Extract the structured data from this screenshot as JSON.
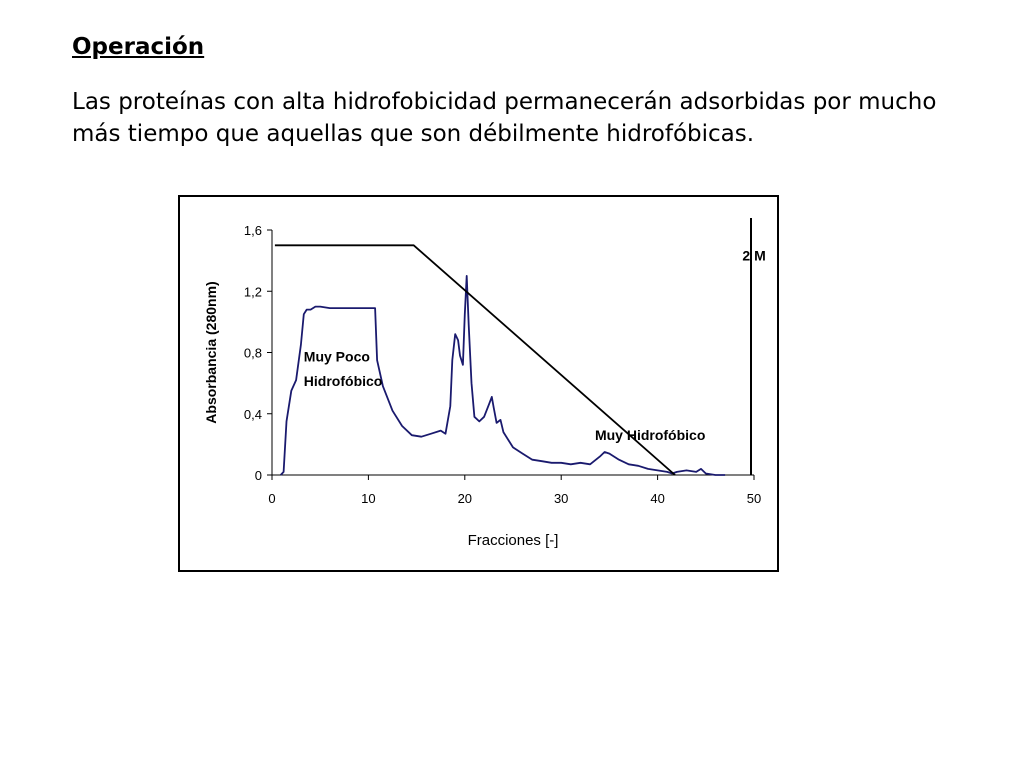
{
  "slide": {
    "heading": "Operación",
    "body": "Las proteínas con alta hidrofobicidad permanecerán adsorbidas por mucho más tiempo que aquellas que son débilmente hidrofóbicas."
  },
  "chart_data": {
    "type": "line",
    "title": "",
    "xlabel": "Fracciones [-]",
    "ylabel": "Absorbancia (280nm)",
    "xlim": [
      0,
      50
    ],
    "ylim": [
      0,
      1.6
    ],
    "xticks": [
      0,
      10,
      20,
      30,
      40,
      50
    ],
    "xtick_labels": [
      "0",
      "10",
      "20",
      "30",
      "40",
      "50"
    ],
    "yticks": [
      0,
      0.4,
      0.8,
      1.2,
      1.6
    ],
    "ytick_labels": [
      "0",
      "0,4",
      "0,8",
      "1,2",
      "1,6"
    ],
    "grid": false,
    "colors": {
      "absorbance": "#1a1a6e",
      "gradient": "#000000"
    },
    "series": [
      {
        "role": "absorbance",
        "x": [
          0.9,
          1.2,
          1.5,
          2.0,
          2.5,
          3.0,
          3.3,
          3.6,
          4.0,
          4.5,
          5.0,
          6.0,
          8.0,
          10.0,
          10.7,
          10.9,
          11.5,
          12.5,
          13.5,
          14.5,
          15.5,
          16.5,
          17.5,
          18.0,
          18.5,
          18.7,
          19.0,
          19.3,
          19.5,
          19.8,
          20.0,
          20.2,
          20.4,
          20.7,
          21.0,
          21.5,
          22.0,
          22.5,
          22.8,
          23.0,
          23.3,
          23.7,
          24.0,
          25.0,
          26.0,
          27.0,
          28.0,
          29.0,
          30.0,
          31.0,
          32.0,
          33.0,
          34.0,
          34.5,
          35.0,
          36.0,
          37.0,
          38.0,
          39.0,
          40.0,
          41.0,
          41.5,
          42.0,
          43.0,
          44.0,
          44.5,
          45.0,
          46.0,
          47.0
        ],
        "y": [
          0.0,
          0.02,
          0.35,
          0.55,
          0.62,
          0.85,
          1.05,
          1.08,
          1.08,
          1.1,
          1.1,
          1.09,
          1.09,
          1.09,
          1.09,
          0.75,
          0.58,
          0.42,
          0.32,
          0.26,
          0.25,
          0.27,
          0.29,
          0.27,
          0.45,
          0.75,
          0.92,
          0.88,
          0.78,
          0.72,
          1.05,
          1.3,
          0.98,
          0.6,
          0.38,
          0.35,
          0.38,
          0.46,
          0.51,
          0.44,
          0.34,
          0.36,
          0.28,
          0.18,
          0.14,
          0.1,
          0.09,
          0.08,
          0.08,
          0.07,
          0.08,
          0.07,
          0.12,
          0.15,
          0.14,
          0.1,
          0.07,
          0.06,
          0.04,
          0.03,
          0.02,
          0.01,
          0.02,
          0.03,
          0.02,
          0.04,
          0.01,
          0.0,
          0.0
        ]
      },
      {
        "role": "gradient",
        "x": [
          0.3,
          14.7,
          41.8
        ],
        "y": [
          1.5,
          1.5,
          0.0
        ]
      }
    ],
    "annotations": [
      {
        "text": "Muy Poco",
        "x": 3.3,
        "y": 0.74
      },
      {
        "text": "Hidrofóbico",
        "x": 3.3,
        "y": 0.58
      },
      {
        "text": "Muy Hidrofóbico",
        "x": 33.5,
        "y": 0.23
      },
      {
        "text": "2 M",
        "x": 48.8,
        "y": 1.4
      }
    ],
    "marker_line_x": 50
  }
}
